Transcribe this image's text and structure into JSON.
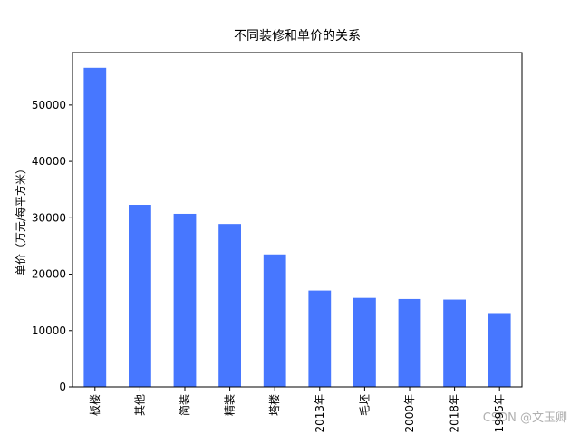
{
  "chart_data": {
    "type": "bar",
    "title": "不同装修和单价的关系",
    "y_label": "单价（万元/每平方米）",
    "categories": [
      "板楼",
      "其他",
      "简装",
      "精装",
      "塔楼",
      "2013年",
      "毛坯",
      "2000年",
      "2018年",
      "1995年"
    ],
    "values": [
      56600,
      32300,
      30700,
      28900,
      23500,
      17100,
      15800,
      15600,
      15500,
      13100
    ],
    "color": "#4777ff",
    "ylim": [
      0,
      59300
    ],
    "yticks": [
      0,
      10000,
      20000,
      30000,
      40000,
      50000
    ],
    "grid": false
  },
  "watermark": "CSDN @文玉卿"
}
